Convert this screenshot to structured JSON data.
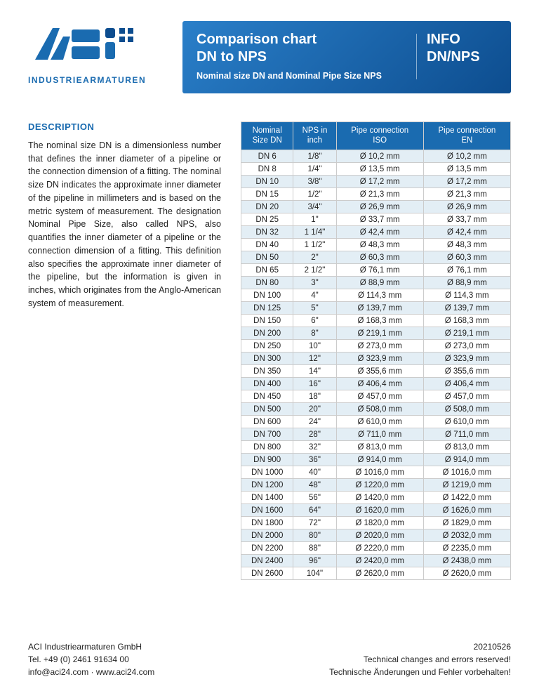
{
  "logo": {
    "subtext": "INDUSTRIEARMATUREN",
    "brand_color": "#1a6bb0",
    "accent_color": "#0d4d8f"
  },
  "banner": {
    "title_line1": "Comparison chart",
    "title_line2": "DN to NPS",
    "subtitle": "Nominal size DN and Nominal Pipe Size NPS",
    "info_line1": "INFO",
    "info_line2": "DN/NPS",
    "gradient_start": "#2a7fc9",
    "gradient_end": "#0d4d8f"
  },
  "description": {
    "heading": "DESCRIPTION",
    "text": "The nominal size DN is a dimensionless number that defines the inner diameter of a pipeline or the connection dimension of a fitting. The nominal size DN indicates the approximate inner diameter of the pipeline in millimeters and is based on the metric system of measurement. The designation Nominal Pipe Size, also called NPS, also quantifies the inner diameter of a pipeline or the connection dimension of a fitting. This definition also specifies the approximate inner diameter of the pipeline, but the information is given in inches, which originates from the Anglo-American system of measurement."
  },
  "table": {
    "header_bg": "#1a6bb0",
    "row_alt_bg": "#e3eef5",
    "border_color": "#cccccc",
    "columns": [
      {
        "line1": "Nominal",
        "line2": "Size DN"
      },
      {
        "line1": "NPS in",
        "line2": "inch"
      },
      {
        "line1": "Pipe connection",
        "line2": "ISO"
      },
      {
        "line1": "Pipe connection",
        "line2": "EN"
      }
    ],
    "rows": [
      [
        "DN 6",
        "1/8\"",
        "Ø 10,2 mm",
        "Ø 10,2 mm"
      ],
      [
        "DN 8",
        "1/4\"",
        "Ø 13,5 mm",
        "Ø 13,5 mm"
      ],
      [
        "DN 10",
        "3/8\"",
        "Ø 17,2 mm",
        "Ø 17,2 mm"
      ],
      [
        "DN 15",
        "1/2\"",
        "Ø 21,3 mm",
        "Ø 21,3 mm"
      ],
      [
        "DN 20",
        "3/4\"",
        "Ø 26,9 mm",
        "Ø 26,9 mm"
      ],
      [
        "DN 25",
        "1\"",
        "Ø 33,7 mm",
        "Ø 33,7 mm"
      ],
      [
        "DN 32",
        "1 1/4\"",
        "Ø 42,4 mm",
        "Ø 42,4 mm"
      ],
      [
        "DN 40",
        "1 1/2\"",
        "Ø 48,3 mm",
        "Ø 48,3 mm"
      ],
      [
        "DN 50",
        "2\"",
        "Ø 60,3 mm",
        "Ø 60,3 mm"
      ],
      [
        "DN 65",
        "2 1/2\"",
        "Ø 76,1 mm",
        "Ø 76,1 mm"
      ],
      [
        "DN 80",
        "3\"",
        "Ø 88,9 mm",
        "Ø 88,9 mm"
      ],
      [
        "DN 100",
        "4\"",
        "Ø 114,3 mm",
        "Ø 114,3 mm"
      ],
      [
        "DN 125",
        "5\"",
        "Ø 139,7 mm",
        "Ø 139,7 mm"
      ],
      [
        "DN 150",
        "6\"",
        "Ø 168,3 mm",
        "Ø 168,3 mm"
      ],
      [
        "DN 200",
        "8\"",
        "Ø 219,1 mm",
        "Ø 219,1 mm"
      ],
      [
        "DN 250",
        "10\"",
        "Ø 273,0 mm",
        "Ø 273,0 mm"
      ],
      [
        "DN 300",
        "12\"",
        "Ø 323,9 mm",
        "Ø 323,9 mm"
      ],
      [
        "DN 350",
        "14\"",
        "Ø 355,6 mm",
        "Ø 355,6 mm"
      ],
      [
        "DN 400",
        "16\"",
        "Ø 406,4 mm",
        "Ø 406,4 mm"
      ],
      [
        "DN 450",
        "18\"",
        "Ø 457,0 mm",
        "Ø 457,0 mm"
      ],
      [
        "DN 500",
        "20\"",
        "Ø 508,0 mm",
        "Ø 508,0 mm"
      ],
      [
        "DN 600",
        "24\"",
        "Ø 610,0 mm",
        "Ø 610,0 mm"
      ],
      [
        "DN 700",
        "28\"",
        "Ø 711,0 mm",
        "Ø 711,0 mm"
      ],
      [
        "DN 800",
        "32\"",
        "Ø 813,0 mm",
        "Ø 813,0 mm"
      ],
      [
        "DN 900",
        "36\"",
        "Ø 914,0 mm",
        "Ø 914,0 mm"
      ],
      [
        "DN 1000",
        "40\"",
        "Ø 1016,0 mm",
        "Ø 1016,0 mm"
      ],
      [
        "DN 1200",
        "48\"",
        "Ø 1220,0 mm",
        "Ø 1219,0 mm"
      ],
      [
        "DN 1400",
        "56\"",
        "Ø 1420,0 mm",
        "Ø 1422,0 mm"
      ],
      [
        "DN 1600",
        "64\"",
        "Ø 1620,0 mm",
        "Ø 1626,0 mm"
      ],
      [
        "DN 1800",
        "72\"",
        "Ø 1820,0 mm",
        "Ø 1829,0 mm"
      ],
      [
        "DN 2000",
        "80\"",
        "Ø 2020,0 mm",
        "Ø 2032,0 mm"
      ],
      [
        "DN 2200",
        "88\"",
        "Ø 2220,0 mm",
        "Ø 2235,0 mm"
      ],
      [
        "DN 2400",
        "96\"",
        "Ø 2420,0 mm",
        "Ø 2438,0 mm"
      ],
      [
        "DN 2600",
        "104\"",
        "Ø 2620,0 mm",
        "Ø 2620,0 mm"
      ]
    ]
  },
  "footer": {
    "left_line1": "ACI Industriearmaturen GmbH",
    "left_line2": "Tel. +49 (0) 2461 91634 00",
    "left_line3": "info@aci24.com · www.aci24.com",
    "right_line1": "20210526",
    "right_line2": "Technical changes and errors reserved!",
    "right_line3": "Technische Änderungen und Fehler vorbehalten!"
  }
}
